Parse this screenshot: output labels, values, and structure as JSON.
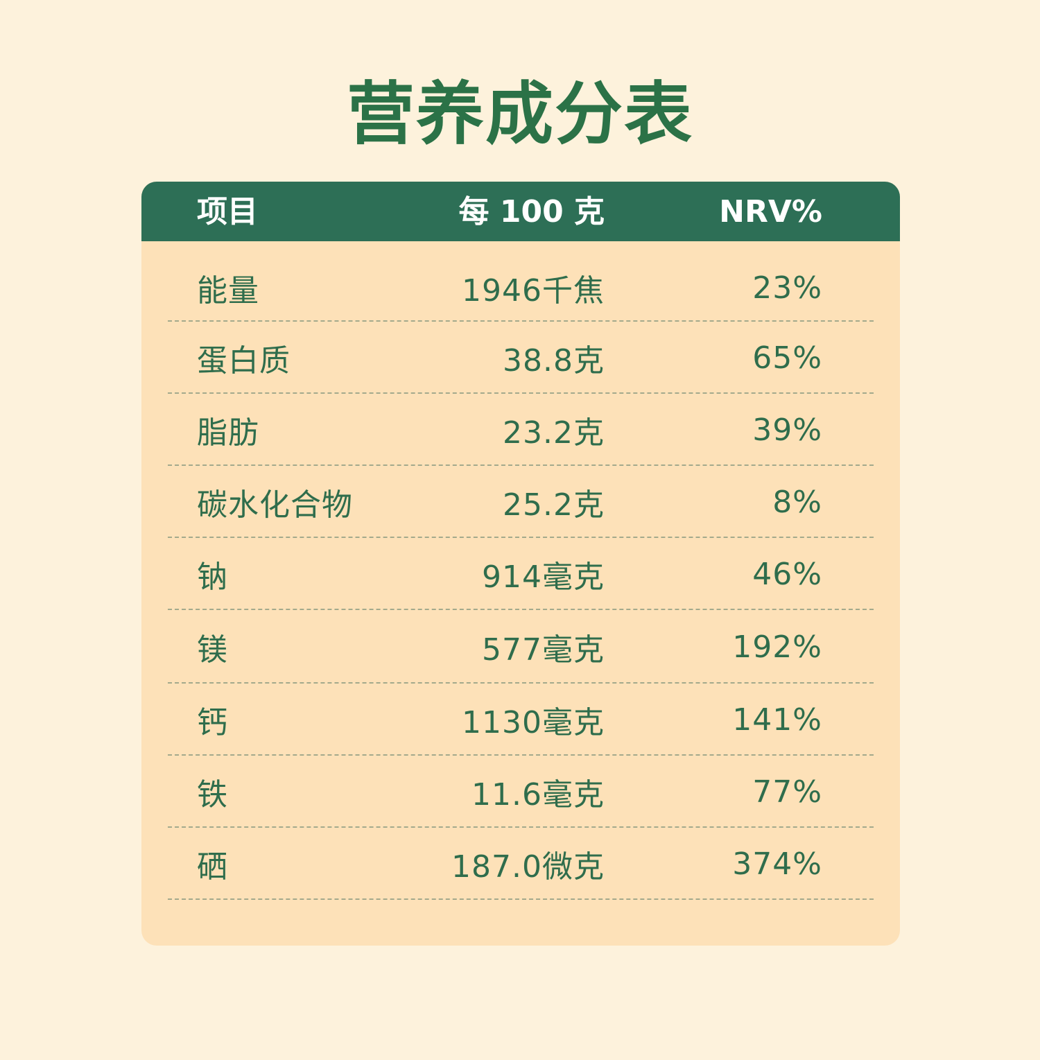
{
  "title": "营养成分表",
  "table": {
    "headers": {
      "item": "项目",
      "per100": "每 100 克",
      "nrv": "NRV%"
    },
    "rows": [
      {
        "item": "能量",
        "per100": "1946千焦",
        "nrv": "23%"
      },
      {
        "item": "蛋白质",
        "per100": "38.8克",
        "nrv": "65%"
      },
      {
        "item": "脂肪",
        "per100": "23.2克",
        "nrv": "39%"
      },
      {
        "item": "碳水化合物",
        "per100": "25.2克",
        "nrv": "8%"
      },
      {
        "item": "钠",
        "per100": "914毫克",
        "nrv": "46%"
      },
      {
        "item": "镁",
        "per100": "577毫克",
        "nrv": "192%"
      },
      {
        "item": "钙",
        "per100": "1130毫克",
        "nrv": "141%"
      },
      {
        "item": "铁",
        "per100": "11.6毫克",
        "nrv": "77%"
      },
      {
        "item": "硒",
        "per100": "187.0微克",
        "nrv": "374%"
      }
    ]
  },
  "colors": {
    "background": "#fdf2dc",
    "title": "#2b7247",
    "header_bg": "#2d6f56",
    "card_bg": "#fde1b8",
    "text": "#2f6d4c"
  }
}
